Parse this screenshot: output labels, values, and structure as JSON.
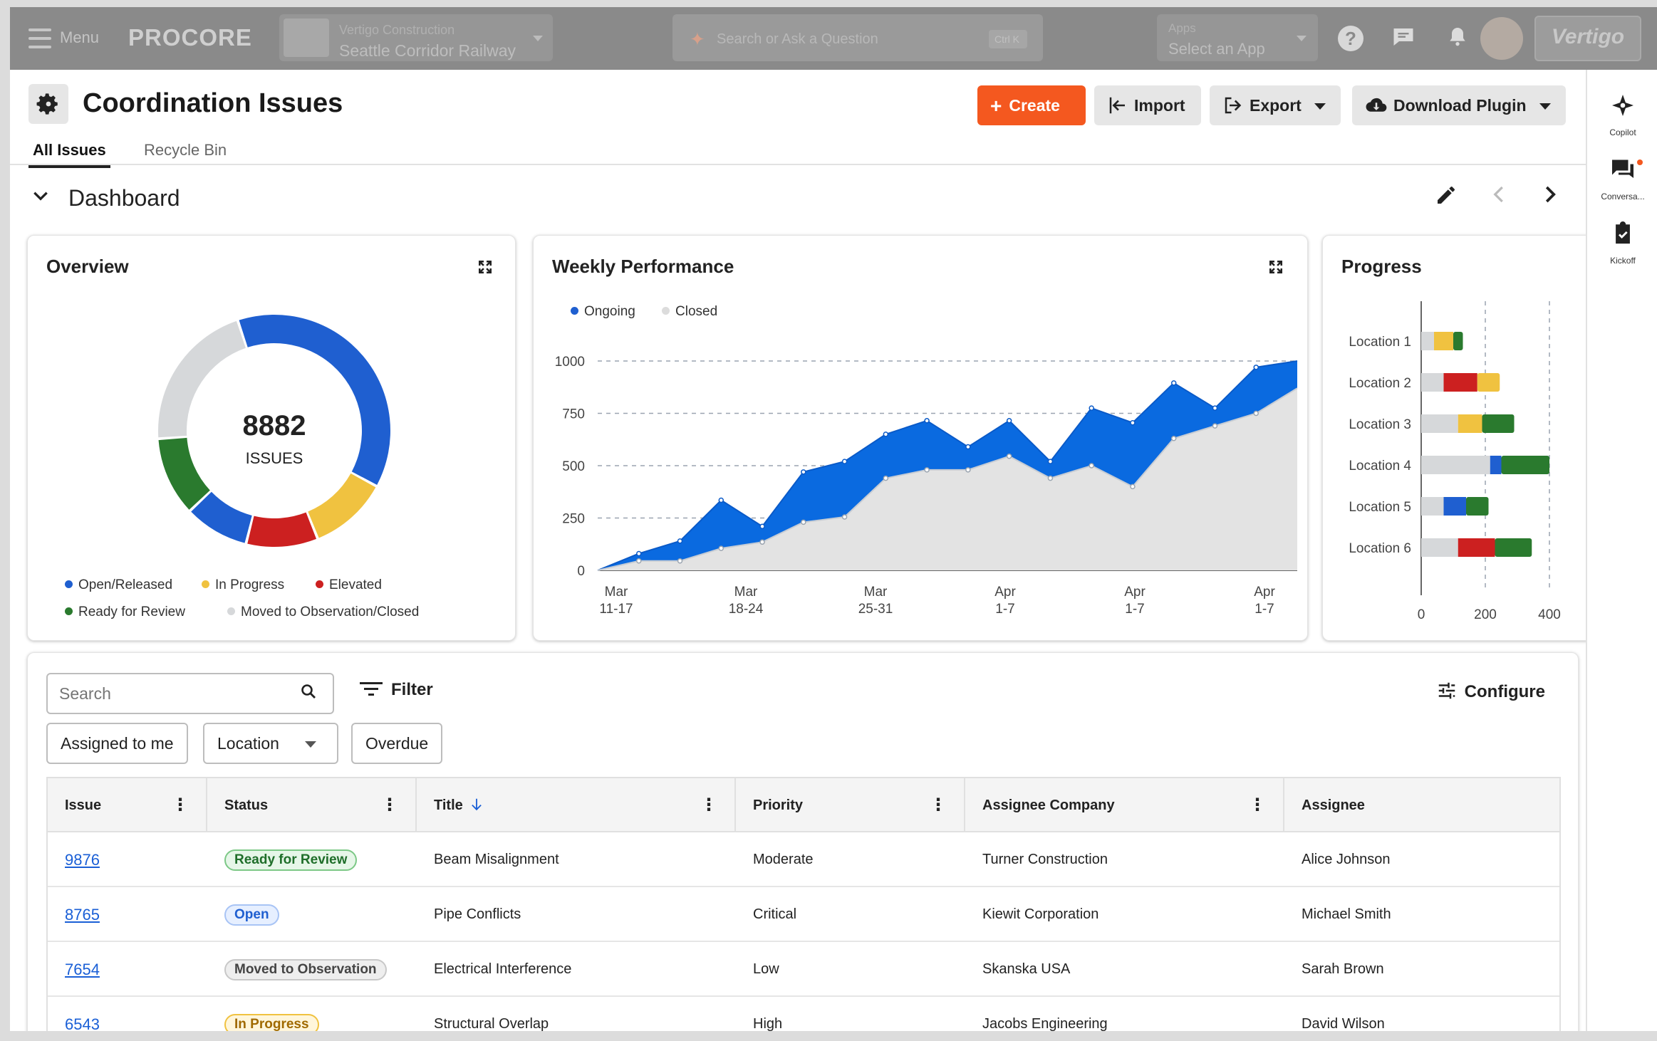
{
  "topbar": {
    "menu_label": "Menu",
    "logo": "PROCORE",
    "project_company": "Vertigo Construction",
    "project_name": "Seattle Corridor Railway",
    "search_placeholder": "Search or Ask a Question",
    "search_shortcut": "Ctrl  K",
    "apps_label": "Apps",
    "apps_select": "Select an App",
    "brand": "Vertigo"
  },
  "header": {
    "title": "Coordination Issues",
    "tabs": [
      {
        "label": "All Issues"
      },
      {
        "label": "Recycle Bin"
      }
    ],
    "buttons": {
      "create": "Create",
      "import": "Import",
      "export": "Export",
      "plugin": "Download Plugin"
    }
  },
  "dashboard": {
    "title": "Dashboard"
  },
  "overview": {
    "title": "Overview",
    "total": "8882",
    "total_label": "ISSUES",
    "segments": [
      {
        "name": "Open/Released",
        "value": 38,
        "color": "#1f5fd0"
      },
      {
        "name": "In Progress",
        "value": 11,
        "color": "#f0c240"
      },
      {
        "name": "Elevated",
        "value": 10,
        "color": "#cc2020"
      },
      {
        "name": "Open/Released",
        "value": 9,
        "color": "#1f5fd0"
      },
      {
        "name": "Ready for Review",
        "value": 11,
        "color": "#2a7a2e"
      },
      {
        "name": "Moved to Observation/Closed",
        "value": 21,
        "color": "#d6d8da"
      }
    ],
    "legend": [
      {
        "label": "Open/Released",
        "color": "#1f5fd0"
      },
      {
        "label": "In Progress",
        "color": "#f0c240"
      },
      {
        "label": "Elevated",
        "color": "#cc2020"
      },
      {
        "label": "Ready for Review",
        "color": "#2a7a2e"
      },
      {
        "label": "Moved to Observation/Closed",
        "color": "#d6d8da"
      }
    ]
  },
  "chart_data": [
    {
      "type": "area",
      "title": "Weekly Performance",
      "ylim": [
        0,
        1000
      ],
      "yticks": [
        0,
        250,
        500,
        750,
        1000
      ],
      "xticks": [
        {
          "top": "Mar",
          "bottom": "11-17"
        },
        {
          "top": "Mar",
          "bottom": "18-24"
        },
        {
          "top": "Mar",
          "bottom": "25-31"
        },
        {
          "top": "Apr",
          "bottom": "1-7"
        },
        {
          "top": "Apr",
          "bottom": "1-7"
        },
        {
          "top": "Apr",
          "bottom": "1-7"
        }
      ],
      "legend_position": "top-left",
      "series": [
        {
          "name": "Ongoing",
          "color": "#0a6ae0",
          "values": [
            0,
            80,
            140,
            335,
            210,
            470,
            520,
            650,
            715,
            590,
            715,
            520,
            775,
            705,
            895,
            775,
            970,
            1000
          ]
        },
        {
          "name": "Closed",
          "color": "#e3e3e3",
          "values": [
            0,
            45,
            45,
            105,
            135,
            230,
            255,
            440,
            480,
            480,
            545,
            440,
            500,
            400,
            630,
            690,
            750,
            870
          ]
        }
      ]
    },
    {
      "type": "bar",
      "title": "Progress",
      "orientation": "horizontal",
      "stacked": true,
      "xlim": [
        0,
        400
      ],
      "xticks": [
        0,
        200,
        400
      ],
      "categories": [
        "Location 1",
        "Location 2",
        "Location 3",
        "Location 4",
        "Location 5",
        "Location 6"
      ],
      "stacks": [
        [
          {
            "value": 40,
            "color": "#d6d8da"
          },
          {
            "value": 60,
            "color": "#f0c240"
          },
          {
            "value": 30,
            "color": "#2a7a2e"
          }
        ],
        [
          {
            "value": 70,
            "color": "#d6d8da"
          },
          {
            "value": 105,
            "color": "#cc2020"
          },
          {
            "value": 70,
            "color": "#f0c240"
          }
        ],
        [
          {
            "value": 115,
            "color": "#d6d8da"
          },
          {
            "value": 75,
            "color": "#f0c240"
          },
          {
            "value": 100,
            "color": "#2a7a2e"
          }
        ],
        [
          {
            "value": 215,
            "color": "#d6d8da"
          },
          {
            "value": 35,
            "color": "#1f5fd0"
          },
          {
            "value": 150,
            "color": "#2a7a2e"
          }
        ],
        [
          {
            "value": 70,
            "color": "#d6d8da"
          },
          {
            "value": 70,
            "color": "#1f5fd0"
          },
          {
            "value": 70,
            "color": "#2a7a2e"
          }
        ],
        [
          {
            "value": 115,
            "color": "#d6d8da"
          },
          {
            "value": 115,
            "color": "#cc2020"
          },
          {
            "value": 115,
            "color": "#2a7a2e"
          }
        ]
      ]
    }
  ],
  "toolbar": {
    "search_placeholder": "Search",
    "filter": "Filter",
    "configure": "Configure",
    "chips": {
      "assigned": "Assigned to me",
      "location": "Location",
      "overdue": "Overdue"
    }
  },
  "table": {
    "columns": [
      "Issue",
      "Status",
      "Title",
      "Priority",
      "Assignee Company",
      "Assignee"
    ],
    "rows": [
      {
        "issue": "9876",
        "status": "Ready for Review",
        "title": "Beam Misalignment",
        "priority": "Moderate",
        "company": "Turner Construction",
        "assignee": "Alice Johnson"
      },
      {
        "issue": "8765",
        "status": "Open",
        "title": "Pipe Conflicts",
        "priority": "Critical",
        "company": "Kiewit Corporation",
        "assignee": "Michael Smith"
      },
      {
        "issue": "7654",
        "status": "Moved to Observation",
        "title": "Electrical Interference",
        "priority": "Low",
        "company": "Skanska USA",
        "assignee": "Sarah Brown"
      },
      {
        "issue": "6543",
        "status": "In Progress",
        "title": "Structural Overlap",
        "priority": "High",
        "company": "Jacobs Engineering",
        "assignee": "David Wilson"
      }
    ]
  },
  "status_colors": {
    "Ready for Review": {
      "bg": "#e6f6e8",
      "border": "#7cc886",
      "text": "#1f6e2a"
    },
    "Open": {
      "bg": "#e6efff",
      "border": "#a8c4f5",
      "text": "#1f5fd0"
    },
    "Moved to Observation": {
      "bg": "#eeeeee",
      "border": "#c8c8c8",
      "text": "#444444"
    },
    "In Progress": {
      "bg": "#fff6db",
      "border": "#f0c240",
      "text": "#a06a00"
    }
  },
  "sidebar": {
    "items": [
      {
        "label": "Copilot"
      },
      {
        "label": "Conversa..."
      },
      {
        "label": "Kickoff"
      }
    ]
  }
}
